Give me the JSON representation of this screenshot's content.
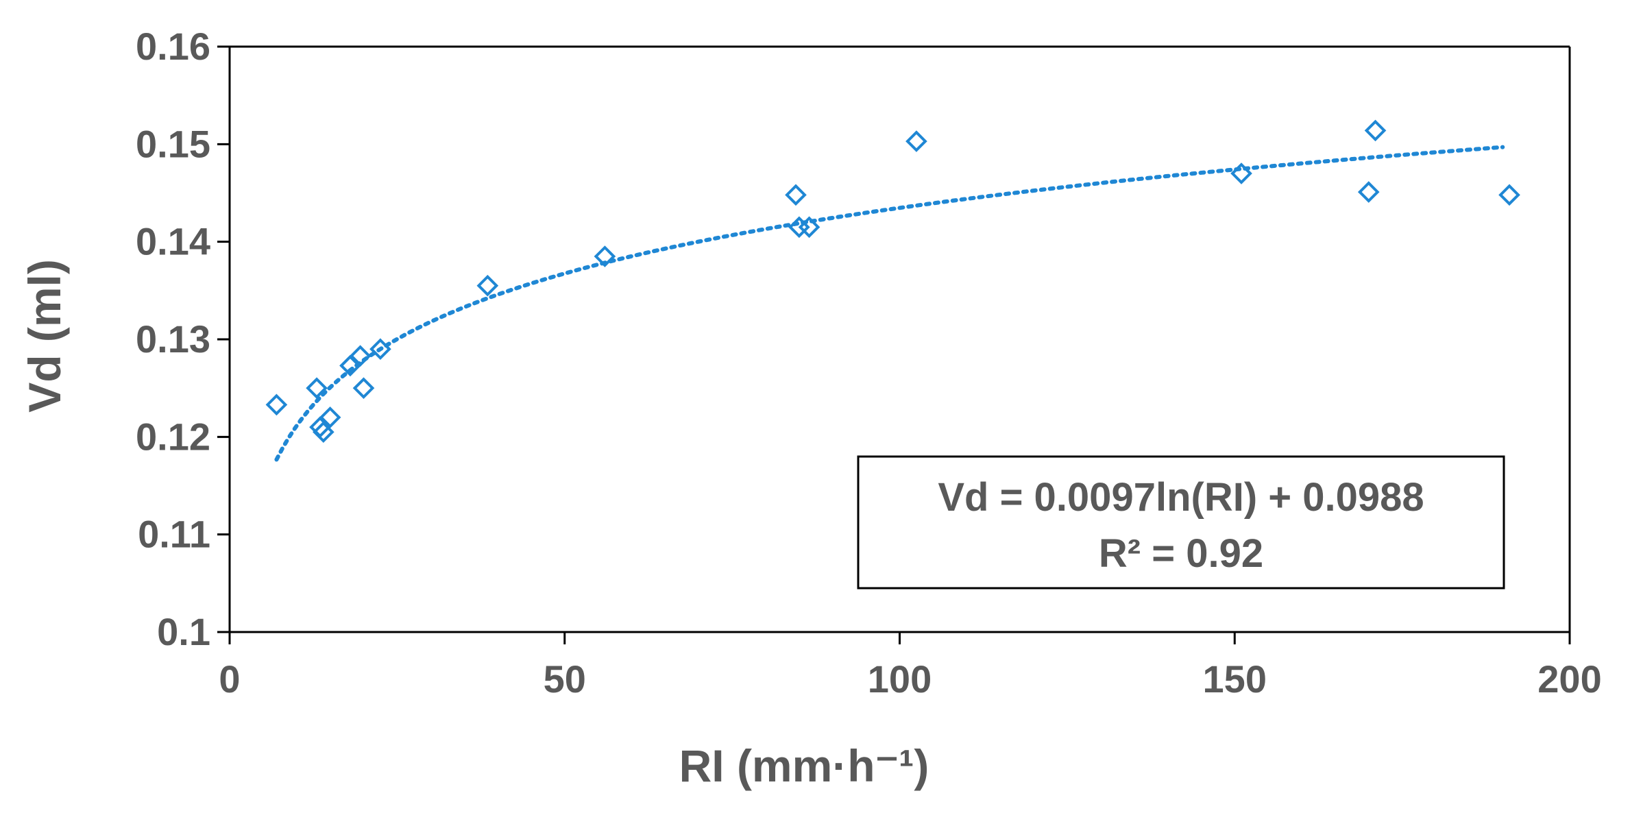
{
  "chart_data": {
    "type": "scatter",
    "xlabel": "RI (mm·h⁻¹)",
    "ylabel": "Vd (ml)",
    "xlim": [
      0,
      200
    ],
    "ylim": [
      0.1,
      0.16
    ],
    "x_ticks": [
      0,
      50,
      100,
      150,
      200
    ],
    "y_ticks": [
      0.1,
      0.11,
      0.12,
      0.13,
      0.14,
      0.15,
      0.16
    ],
    "x_tick_labels": [
      "0",
      "50",
      "100",
      "150",
      "200"
    ],
    "y_tick_labels": [
      "0.1",
      "0.11",
      "0.12",
      "0.13",
      "0.14",
      "0.15",
      "0.16"
    ],
    "grid": false,
    "marker": "hollow-diamond",
    "color": "#1f87d4",
    "series": [
      {
        "x": [
          7,
          13,
          13.5,
          14,
          15,
          18,
          19.5,
          20,
          22.5,
          38.5,
          56,
          84.5,
          85,
          86.5,
          102.5,
          151,
          170,
          171,
          191
        ],
        "y": [
          0.1233,
          0.125,
          0.121,
          0.1205,
          0.122,
          0.1273,
          0.1283,
          0.125,
          0.129,
          0.1355,
          0.1385,
          0.1448,
          0.1415,
          0.1415,
          0.1503,
          0.147,
          0.1451,
          0.1514,
          0.1448
        ]
      }
    ],
    "trendline": {
      "type": "logarithmic",
      "a": 0.0097,
      "b": 0.0988,
      "x_range": [
        7,
        190
      ],
      "style": "dotted"
    },
    "annotations": {
      "equation": "Vd = 0.0097ln(RI) + 0.0988",
      "r_squared": "R² = 0.92",
      "placement": "bottom-right"
    }
  }
}
